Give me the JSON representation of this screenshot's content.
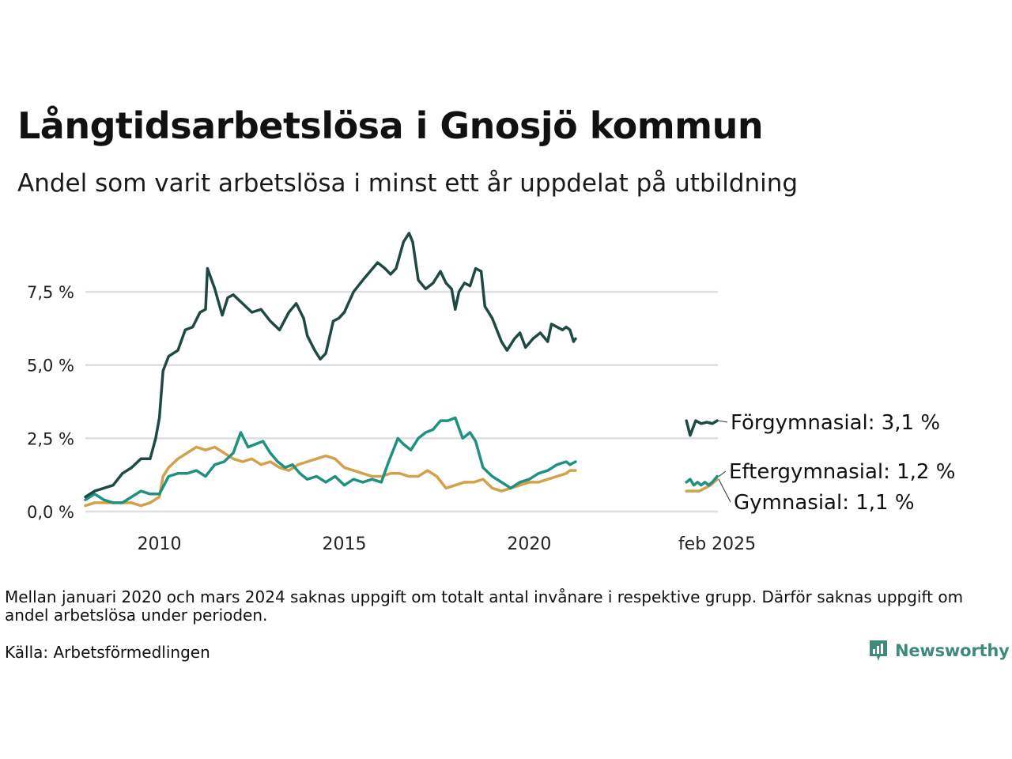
{
  "title": "Långtidsarbetslösa i Gnosjö kommun",
  "subtitle": "Andel som varit arbetslösa i minst ett år uppdelat på utbildning",
  "note": "Mellan januari 2020 och mars 2024 saknas uppgift om totalt antal invånare i respektive grupp. Därför saknas uppgift om andel arbetslösa under perioden.",
  "source": "Källa: Arbetsförmedlingen",
  "logo": {
    "text": "Newsworthy",
    "icon": "newsworthy-logo-icon"
  },
  "chart_data": {
    "type": "line",
    "y_tick_labels": [
      "0,0 %",
      "2,5 %",
      "5,0 %",
      "7,5 %"
    ],
    "y_ticks": [
      0,
      2.5,
      5.0,
      7.5
    ],
    "ylim": [
      0,
      9.5
    ],
    "xlim": [
      2008.0,
      2025.1
    ],
    "x_tick_labels": [
      "2010",
      "2015",
      "2020",
      "feb 2025"
    ],
    "x_ticks": [
      2010,
      2015,
      2020,
      2025.08
    ],
    "grid": true,
    "legend": "end-labels",
    "series": [
      {
        "name": "Förgymnasial",
        "end_label": "Förgymnasial: 3,1 %",
        "color": "#1f4a44",
        "points": [
          [
            2008.0,
            0.5
          ],
          [
            2008.25,
            0.7
          ],
          [
            2008.5,
            0.8
          ],
          [
            2008.75,
            0.9
          ],
          [
            2009.0,
            1.3
          ],
          [
            2009.25,
            1.5
          ],
          [
            2009.5,
            1.8
          ],
          [
            2009.75,
            1.8
          ],
          [
            2009.9,
            2.5
          ],
          [
            2010.0,
            3.2
          ],
          [
            2010.1,
            4.8
          ],
          [
            2010.25,
            5.3
          ],
          [
            2010.5,
            5.5
          ],
          [
            2010.7,
            6.2
          ],
          [
            2010.9,
            6.3
          ],
          [
            2011.1,
            6.8
          ],
          [
            2011.25,
            6.9
          ],
          [
            2011.3,
            8.3
          ],
          [
            2011.5,
            7.6
          ],
          [
            2011.7,
            6.7
          ],
          [
            2011.85,
            7.3
          ],
          [
            2012.0,
            7.4
          ],
          [
            2012.25,
            7.1
          ],
          [
            2012.5,
            6.8
          ],
          [
            2012.75,
            6.9
          ],
          [
            2013.0,
            6.5
          ],
          [
            2013.25,
            6.2
          ],
          [
            2013.5,
            6.8
          ],
          [
            2013.7,
            7.1
          ],
          [
            2013.9,
            6.6
          ],
          [
            2014.0,
            6.0
          ],
          [
            2014.2,
            5.5
          ],
          [
            2014.35,
            5.2
          ],
          [
            2014.5,
            5.4
          ],
          [
            2014.7,
            6.5
          ],
          [
            2014.85,
            6.6
          ],
          [
            2015.0,
            6.8
          ],
          [
            2015.25,
            7.5
          ],
          [
            2015.5,
            7.9
          ],
          [
            2015.7,
            8.2
          ],
          [
            2015.9,
            8.5
          ],
          [
            2016.1,
            8.3
          ],
          [
            2016.25,
            8.1
          ],
          [
            2016.4,
            8.3
          ],
          [
            2016.6,
            9.2
          ],
          [
            2016.75,
            9.5
          ],
          [
            2016.85,
            9.2
          ],
          [
            2017.0,
            7.9
          ],
          [
            2017.2,
            7.6
          ],
          [
            2017.4,
            7.8
          ],
          [
            2017.6,
            8.2
          ],
          [
            2017.75,
            7.8
          ],
          [
            2017.9,
            7.6
          ],
          [
            2018.0,
            6.9
          ],
          [
            2018.1,
            7.5
          ],
          [
            2018.25,
            7.8
          ],
          [
            2018.4,
            7.7
          ],
          [
            2018.55,
            8.3
          ],
          [
            2018.7,
            8.2
          ],
          [
            2018.8,
            7.0
          ],
          [
            2019.0,
            6.6
          ],
          [
            2019.25,
            5.8
          ],
          [
            2019.4,
            5.5
          ],
          [
            2019.6,
            5.9
          ],
          [
            2019.75,
            6.1
          ],
          [
            2019.9,
            5.6
          ],
          [
            2020.1,
            5.9
          ],
          [
            2020.3,
            6.1
          ],
          [
            2020.5,
            5.8
          ],
          [
            2020.6,
            6.4
          ],
          [
            2020.75,
            6.3
          ],
          [
            2020.9,
            6.2
          ],
          [
            2021.0,
            6.3
          ],
          [
            2021.1,
            6.2
          ],
          [
            2021.2,
            5.8
          ],
          [
            2021.25,
            5.9
          ]
        ],
        "points_recent": [
          [
            2024.25,
            3.1
          ],
          [
            2024.35,
            2.6
          ],
          [
            2024.5,
            3.1
          ],
          [
            2024.65,
            3.0
          ],
          [
            2024.8,
            3.05
          ],
          [
            2024.95,
            3.0
          ],
          [
            2025.08,
            3.1
          ]
        ]
      },
      {
        "name": "Eftergymnasial",
        "end_label": "Eftergymnasial: 1,2 %",
        "color": "#1f9180",
        "points": [
          [
            2008.0,
            0.4
          ],
          [
            2008.25,
            0.6
          ],
          [
            2008.5,
            0.4
          ],
          [
            2008.75,
            0.3
          ],
          [
            2009.0,
            0.3
          ],
          [
            2009.25,
            0.5
          ],
          [
            2009.5,
            0.7
          ],
          [
            2009.75,
            0.6
          ],
          [
            2010.0,
            0.6
          ],
          [
            2010.25,
            1.2
          ],
          [
            2010.5,
            1.3
          ],
          [
            2010.75,
            1.3
          ],
          [
            2011.0,
            1.4
          ],
          [
            2011.25,
            1.2
          ],
          [
            2011.5,
            1.6
          ],
          [
            2011.75,
            1.7
          ],
          [
            2012.0,
            2.0
          ],
          [
            2012.2,
            2.7
          ],
          [
            2012.4,
            2.2
          ],
          [
            2012.6,
            2.3
          ],
          [
            2012.8,
            2.4
          ],
          [
            2013.0,
            2.0
          ],
          [
            2013.2,
            1.7
          ],
          [
            2013.4,
            1.5
          ],
          [
            2013.6,
            1.6
          ],
          [
            2013.8,
            1.3
          ],
          [
            2014.0,
            1.1
          ],
          [
            2014.25,
            1.2
          ],
          [
            2014.5,
            1.0
          ],
          [
            2014.75,
            1.2
          ],
          [
            2015.0,
            0.9
          ],
          [
            2015.25,
            1.1
          ],
          [
            2015.5,
            1.0
          ],
          [
            2015.75,
            1.1
          ],
          [
            2016.0,
            1.0
          ],
          [
            2016.2,
            1.7
          ],
          [
            2016.45,
            2.5
          ],
          [
            2016.6,
            2.3
          ],
          [
            2016.8,
            2.1
          ],
          [
            2017.0,
            2.5
          ],
          [
            2017.2,
            2.7
          ],
          [
            2017.4,
            2.8
          ],
          [
            2017.6,
            3.1
          ],
          [
            2017.8,
            3.1
          ],
          [
            2018.0,
            3.2
          ],
          [
            2018.2,
            2.5
          ],
          [
            2018.4,
            2.7
          ],
          [
            2018.55,
            2.4
          ],
          [
            2018.75,
            1.5
          ],
          [
            2019.0,
            1.2
          ],
          [
            2019.25,
            1.0
          ],
          [
            2019.5,
            0.8
          ],
          [
            2019.75,
            1.0
          ],
          [
            2020.0,
            1.1
          ],
          [
            2020.25,
            1.3
          ],
          [
            2020.5,
            1.4
          ],
          [
            2020.75,
            1.6
          ],
          [
            2021.0,
            1.7
          ],
          [
            2021.1,
            1.6
          ],
          [
            2021.25,
            1.7
          ]
        ],
        "points_recent": [
          [
            2024.25,
            1.0
          ],
          [
            2024.35,
            1.1
          ],
          [
            2024.45,
            0.9
          ],
          [
            2024.55,
            1.0
          ],
          [
            2024.65,
            0.9
          ],
          [
            2024.75,
            1.0
          ],
          [
            2024.85,
            0.9
          ],
          [
            2024.95,
            1.0
          ],
          [
            2025.08,
            1.2
          ]
        ]
      },
      {
        "name": "Gymnasial",
        "end_label": "Gymnasial: 1,1 %",
        "color": "#d4a04a",
        "points": [
          [
            2008.0,
            0.2
          ],
          [
            2008.25,
            0.3
          ],
          [
            2008.5,
            0.3
          ],
          [
            2008.75,
            0.3
          ],
          [
            2009.0,
            0.3
          ],
          [
            2009.25,
            0.3
          ],
          [
            2009.5,
            0.2
          ],
          [
            2009.75,
            0.3
          ],
          [
            2010.0,
            0.5
          ],
          [
            2010.1,
            1.2
          ],
          [
            2010.25,
            1.5
          ],
          [
            2010.5,
            1.8
          ],
          [
            2010.75,
            2.0
          ],
          [
            2011.0,
            2.2
          ],
          [
            2011.25,
            2.1
          ],
          [
            2011.5,
            2.2
          ],
          [
            2011.75,
            2.0
          ],
          [
            2012.0,
            1.8
          ],
          [
            2012.25,
            1.7
          ],
          [
            2012.5,
            1.8
          ],
          [
            2012.75,
            1.6
          ],
          [
            2013.0,
            1.7
          ],
          [
            2013.25,
            1.5
          ],
          [
            2013.5,
            1.4
          ],
          [
            2013.75,
            1.6
          ],
          [
            2014.0,
            1.7
          ],
          [
            2014.25,
            1.8
          ],
          [
            2014.5,
            1.9
          ],
          [
            2014.75,
            1.8
          ],
          [
            2015.0,
            1.5
          ],
          [
            2015.25,
            1.4
          ],
          [
            2015.5,
            1.3
          ],
          [
            2015.75,
            1.2
          ],
          [
            2016.0,
            1.2
          ],
          [
            2016.25,
            1.3
          ],
          [
            2016.5,
            1.3
          ],
          [
            2016.75,
            1.2
          ],
          [
            2017.0,
            1.2
          ],
          [
            2017.25,
            1.4
          ],
          [
            2017.5,
            1.2
          ],
          [
            2017.75,
            0.8
          ],
          [
            2018.0,
            0.9
          ],
          [
            2018.25,
            1.0
          ],
          [
            2018.5,
            1.0
          ],
          [
            2018.75,
            1.1
          ],
          [
            2019.0,
            0.8
          ],
          [
            2019.25,
            0.7
          ],
          [
            2019.5,
            0.8
          ],
          [
            2019.75,
            0.9
          ],
          [
            2020.0,
            1.0
          ],
          [
            2020.25,
            1.0
          ],
          [
            2020.5,
            1.1
          ],
          [
            2020.75,
            1.2
          ],
          [
            2021.0,
            1.3
          ],
          [
            2021.1,
            1.4
          ],
          [
            2021.25,
            1.4
          ]
        ],
        "points_recent": [
          [
            2024.25,
            0.7
          ],
          [
            2024.45,
            0.7
          ],
          [
            2024.6,
            0.7
          ],
          [
            2024.75,
            0.8
          ],
          [
            2024.9,
            0.9
          ],
          [
            2025.08,
            1.1
          ]
        ]
      }
    ]
  }
}
